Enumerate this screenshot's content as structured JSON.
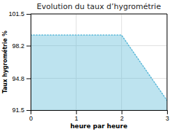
{
  "chart_data": {
    "type": "area",
    "title": "Evolution du taux d’hygrométrie",
    "xlabel": "heure par heure",
    "ylabel": "Taux hygrométrie %",
    "x": [
      0,
      2,
      3
    ],
    "values": [
      99.3,
      99.3,
      92.5
    ],
    "color": "#5ab8d8",
    "line_style": "dotted",
    "xlim": [
      0,
      3
    ],
    "ylim": [
      91.5,
      101.5
    ],
    "xticks": [
      0,
      1,
      2,
      3
    ],
    "yticks": [
      91.5,
      94.8,
      98.2,
      101.5
    ],
    "grid": true
  }
}
